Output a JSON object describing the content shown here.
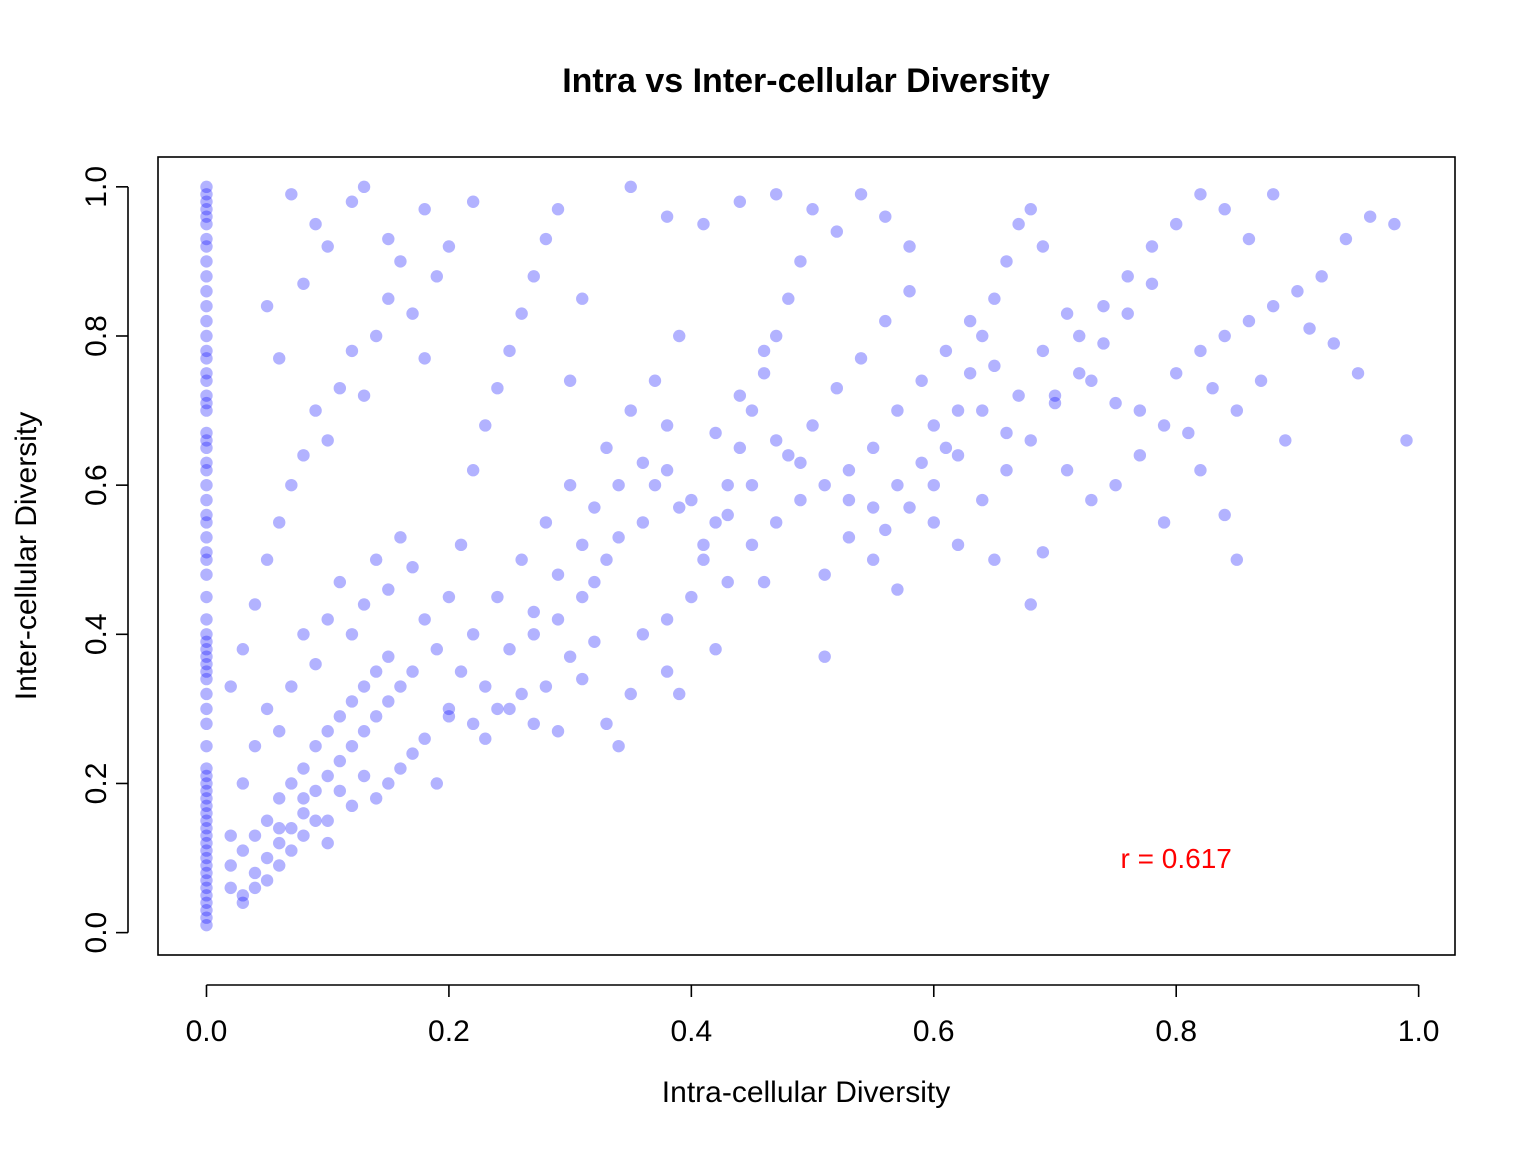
{
  "chart_data": {
    "type": "scatter",
    "title": "Intra vs Inter-cellular Diversity",
    "xlabel": "Intra-cellular Diversity",
    "ylabel": "Inter-cellular Diversity",
    "xlim": [
      -0.04,
      1.03
    ],
    "ylim": [
      -0.03,
      1.04
    ],
    "x_ticks": [
      0.0,
      0.2,
      0.4,
      0.6,
      0.8,
      1.0
    ],
    "x_tick_labels": [
      "0.0",
      "0.2",
      "0.4",
      "0.6",
      "0.8",
      "1.0"
    ],
    "y_ticks": [
      0.0,
      0.2,
      0.4,
      0.6,
      0.8,
      1.0
    ],
    "y_tick_labels": [
      "0.0",
      "0.2",
      "0.4",
      "0.6",
      "0.8",
      "1.0"
    ],
    "grid": false,
    "point_color": "#0000FF",
    "point_alpha": 0.3,
    "annotation": {
      "text": "r = 0.617",
      "x": 0.8,
      "y": 0.1,
      "color": "#FF0000"
    },
    "correlation": 0.617,
    "x_column_points_y": [
      0.01,
      0.02,
      0.03,
      0.04,
      0.05,
      0.06,
      0.07,
      0.08,
      0.09,
      0.1,
      0.11,
      0.12,
      0.13,
      0.14,
      0.15,
      0.16,
      0.17,
      0.18,
      0.19,
      0.2,
      0.21,
      0.22,
      0.25,
      0.28,
      0.3,
      0.32,
      0.34,
      0.35,
      0.36,
      0.37,
      0.38,
      0.39,
      0.4,
      0.42,
      0.45,
      0.48,
      0.5,
      0.51,
      0.53,
      0.55,
      0.56,
      0.58,
      0.6,
      0.62,
      0.63,
      0.65,
      0.66,
      0.67,
      0.7,
      0.71,
      0.72,
      0.74,
      0.75,
      0.77,
      0.78,
      0.8,
      0.82,
      0.84,
      0.86,
      0.88,
      0.9,
      0.92,
      0.93,
      0.95,
      0.96,
      0.97,
      0.98,
      0.99,
      1.0
    ],
    "points": [
      [
        0.02,
        0.06
      ],
      [
        0.03,
        0.05
      ],
      [
        0.02,
        0.09
      ],
      [
        0.04,
        0.08
      ],
      [
        0.03,
        0.11
      ],
      [
        0.05,
        0.1
      ],
      [
        0.04,
        0.13
      ],
      [
        0.06,
        0.12
      ],
      [
        0.05,
        0.15
      ],
      [
        0.07,
        0.14
      ],
      [
        0.06,
        0.18
      ],
      [
        0.08,
        0.16
      ],
      [
        0.07,
        0.2
      ],
      [
        0.09,
        0.19
      ],
      [
        0.08,
        0.22
      ],
      [
        0.1,
        0.21
      ],
      [
        0.09,
        0.25
      ],
      [
        0.11,
        0.23
      ],
      [
        0.1,
        0.27
      ],
      [
        0.12,
        0.25
      ],
      [
        0.11,
        0.29
      ],
      [
        0.13,
        0.27
      ],
      [
        0.12,
        0.31
      ],
      [
        0.14,
        0.29
      ],
      [
        0.13,
        0.33
      ],
      [
        0.15,
        0.31
      ],
      [
        0.14,
        0.35
      ],
      [
        0.16,
        0.33
      ],
      [
        0.15,
        0.37
      ],
      [
        0.17,
        0.35
      ],
      [
        0.02,
        0.13
      ],
      [
        0.03,
        0.2
      ],
      [
        0.04,
        0.25
      ],
      [
        0.05,
        0.3
      ],
      [
        0.06,
        0.27
      ],
      [
        0.07,
        0.33
      ],
      [
        0.08,
        0.4
      ],
      [
        0.09,
        0.36
      ],
      [
        0.1,
        0.42
      ],
      [
        0.11,
        0.47
      ],
      [
        0.12,
        0.4
      ],
      [
        0.13,
        0.44
      ],
      [
        0.14,
        0.5
      ],
      [
        0.15,
        0.46
      ],
      [
        0.16,
        0.53
      ],
      [
        0.17,
        0.49
      ],
      [
        0.18,
        0.42
      ],
      [
        0.19,
        0.38
      ],
      [
        0.2,
        0.45
      ],
      [
        0.21,
        0.52
      ],
      [
        0.02,
        0.33
      ],
      [
        0.03,
        0.38
      ],
      [
        0.04,
        0.44
      ],
      [
        0.05,
        0.5
      ],
      [
        0.06,
        0.55
      ],
      [
        0.07,
        0.6
      ],
      [
        0.08,
        0.64
      ],
      [
        0.09,
        0.7
      ],
      [
        0.1,
        0.66
      ],
      [
        0.11,
        0.73
      ],
      [
        0.12,
        0.78
      ],
      [
        0.13,
        0.72
      ],
      [
        0.14,
        0.8
      ],
      [
        0.15,
        0.85
      ],
      [
        0.16,
        0.9
      ],
      [
        0.17,
        0.83
      ],
      [
        0.18,
        0.77
      ],
      [
        0.19,
        0.88
      ],
      [
        0.2,
        0.92
      ],
      [
        0.22,
        0.98
      ],
      [
        0.07,
        0.99
      ],
      [
        0.09,
        0.95
      ],
      [
        0.12,
        0.98
      ],
      [
        0.13,
        1.0
      ],
      [
        0.05,
        0.84
      ],
      [
        0.06,
        0.77
      ],
      [
        0.08,
        0.87
      ],
      [
        0.1,
        0.92
      ],
      [
        0.15,
        0.93
      ],
      [
        0.18,
        0.97
      ],
      [
        0.2,
        0.3
      ],
      [
        0.21,
        0.35
      ],
      [
        0.22,
        0.4
      ],
      [
        0.23,
        0.33
      ],
      [
        0.24,
        0.45
      ],
      [
        0.25,
        0.38
      ],
      [
        0.26,
        0.5
      ],
      [
        0.27,
        0.43
      ],
      [
        0.28,
        0.55
      ],
      [
        0.29,
        0.48
      ],
      [
        0.3,
        0.6
      ],
      [
        0.31,
        0.52
      ],
      [
        0.32,
        0.57
      ],
      [
        0.33,
        0.65
      ],
      [
        0.34,
        0.6
      ],
      [
        0.35,
        0.7
      ],
      [
        0.36,
        0.63
      ],
      [
        0.37,
        0.74
      ],
      [
        0.38,
        0.68
      ],
      [
        0.39,
        0.8
      ],
      [
        0.22,
        0.62
      ],
      [
        0.23,
        0.68
      ],
      [
        0.24,
        0.73
      ],
      [
        0.25,
        0.78
      ],
      [
        0.26,
        0.83
      ],
      [
        0.27,
        0.88
      ],
      [
        0.28,
        0.93
      ],
      [
        0.29,
        0.97
      ],
      [
        0.3,
        0.74
      ],
      [
        0.31,
        0.85
      ],
      [
        0.23,
        0.26
      ],
      [
        0.25,
        0.3
      ],
      [
        0.27,
        0.28
      ],
      [
        0.29,
        0.27
      ],
      [
        0.34,
        0.25
      ],
      [
        0.35,
        0.32
      ],
      [
        0.38,
        0.35
      ],
      [
        0.39,
        0.32
      ],
      [
        0.42,
        0.38
      ],
      [
        0.31,
        0.34
      ],
      [
        0.4,
        0.45
      ],
      [
        0.41,
        0.5
      ],
      [
        0.42,
        0.55
      ],
      [
        0.43,
        0.6
      ],
      [
        0.44,
        0.65
      ],
      [
        0.45,
        0.7
      ],
      [
        0.46,
        0.75
      ],
      [
        0.47,
        0.8
      ],
      [
        0.48,
        0.85
      ],
      [
        0.49,
        0.9
      ],
      [
        0.4,
        0.58
      ],
      [
        0.42,
        0.67
      ],
      [
        0.44,
        0.72
      ],
      [
        0.46,
        0.78
      ],
      [
        0.48,
        0.64
      ],
      [
        0.5,
        0.68
      ],
      [
        0.52,
        0.73
      ],
      [
        0.54,
        0.77
      ],
      [
        0.56,
        0.82
      ],
      [
        0.58,
        0.86
      ],
      [
        0.43,
        0.47
      ],
      [
        0.45,
        0.52
      ],
      [
        0.47,
        0.55
      ],
      [
        0.49,
        0.58
      ],
      [
        0.51,
        0.48
      ],
      [
        0.53,
        0.53
      ],
      [
        0.55,
        0.5
      ],
      [
        0.57,
        0.46
      ],
      [
        0.51,
        0.37
      ],
      [
        0.46,
        0.47
      ],
      [
        0.6,
        0.6
      ],
      [
        0.61,
        0.65
      ],
      [
        0.62,
        0.7
      ],
      [
        0.63,
        0.75
      ],
      [
        0.64,
        0.8
      ],
      [
        0.65,
        0.85
      ],
      [
        0.66,
        0.9
      ],
      [
        0.67,
        0.95
      ],
      [
        0.68,
        0.97
      ],
      [
        0.69,
        0.92
      ],
      [
        0.6,
        0.55
      ],
      [
        0.62,
        0.52
      ],
      [
        0.64,
        0.58
      ],
      [
        0.66,
        0.62
      ],
      [
        0.68,
        0.66
      ],
      [
        0.7,
        0.71
      ],
      [
        0.72,
        0.75
      ],
      [
        0.74,
        0.79
      ],
      [
        0.76,
        0.83
      ],
      [
        0.78,
        0.87
      ],
      [
        0.65,
        0.5
      ],
      [
        0.68,
        0.44
      ],
      [
        0.69,
        0.51
      ],
      [
        0.71,
        0.62
      ],
      [
        0.73,
        0.58
      ],
      [
        0.75,
        0.6
      ],
      [
        0.77,
        0.64
      ],
      [
        0.79,
        0.55
      ],
      [
        0.82,
        0.62
      ],
      [
        0.85,
        0.5
      ],
      [
        0.7,
        0.72
      ],
      [
        0.72,
        0.8
      ],
      [
        0.74,
        0.84
      ],
      [
        0.76,
        0.88
      ],
      [
        0.78,
        0.92
      ],
      [
        0.8,
        0.95
      ],
      [
        0.82,
        0.99
      ],
      [
        0.84,
        0.97
      ],
      [
        0.86,
        0.93
      ],
      [
        0.88,
        0.99
      ],
      [
        0.8,
        0.75
      ],
      [
        0.82,
        0.78
      ],
      [
        0.84,
        0.8
      ],
      [
        0.86,
        0.82
      ],
      [
        0.88,
        0.84
      ],
      [
        0.9,
        0.86
      ],
      [
        0.92,
        0.88
      ],
      [
        0.94,
        0.93
      ],
      [
        0.96,
        0.96
      ],
      [
        0.98,
        0.95
      ],
      [
        0.85,
        0.7
      ],
      [
        0.87,
        0.74
      ],
      [
        0.89,
        0.66
      ],
      [
        0.91,
        0.81
      ],
      [
        0.93,
        0.79
      ],
      [
        0.95,
        0.75
      ],
      [
        0.99,
        0.66
      ],
      [
        0.84,
        0.56
      ],
      [
        0.81,
        0.67
      ],
      [
        0.83,
        0.73
      ],
      [
        0.52,
        0.94
      ],
      [
        0.54,
        0.99
      ],
      [
        0.56,
        0.96
      ],
      [
        0.58,
        0.92
      ],
      [
        0.5,
        0.97
      ],
      [
        0.47,
        0.99
      ],
      [
        0.44,
        0.98
      ],
      [
        0.41,
        0.95
      ],
      [
        0.38,
        0.96
      ],
      [
        0.35,
        1.0
      ],
      [
        0.33,
        0.28
      ],
      [
        0.36,
        0.4
      ],
      [
        0.38,
        0.42
      ],
      [
        0.32,
        0.39
      ],
      [
        0.3,
        0.37
      ],
      [
        0.28,
        0.33
      ],
      [
        0.26,
        0.32
      ],
      [
        0.24,
        0.3
      ],
      [
        0.22,
        0.28
      ],
      [
        0.2,
        0.29
      ],
      [
        0.14,
        0.18
      ],
      [
        0.15,
        0.2
      ],
      [
        0.16,
        0.22
      ],
      [
        0.17,
        0.24
      ],
      [
        0.18,
        0.26
      ],
      [
        0.19,
        0.2
      ],
      [
        0.12,
        0.17
      ],
      [
        0.11,
        0.19
      ],
      [
        0.1,
        0.15
      ],
      [
        0.13,
        0.21
      ],
      [
        0.05,
        0.07
      ],
      [
        0.06,
        0.09
      ],
      [
        0.07,
        0.11
      ],
      [
        0.08,
        0.13
      ],
      [
        0.09,
        0.15
      ],
      [
        0.1,
        0.12
      ],
      [
        0.03,
        0.04
      ],
      [
        0.04,
        0.06
      ],
      [
        0.06,
        0.14
      ],
      [
        0.08,
        0.18
      ],
      [
        0.55,
        0.65
      ],
      [
        0.57,
        0.7
      ],
      [
        0.59,
        0.74
      ],
      [
        0.53,
        0.62
      ],
      [
        0.51,
        0.6
      ],
      [
        0.49,
        0.63
      ],
      [
        0.47,
        0.66
      ],
      [
        0.45,
        0.6
      ],
      [
        0.43,
        0.56
      ],
      [
        0.41,
        0.52
      ],
      [
        0.61,
        0.78
      ],
      [
        0.63,
        0.82
      ],
      [
        0.65,
        0.76
      ],
      [
        0.67,
        0.72
      ],
      [
        0.69,
        0.78
      ],
      [
        0.71,
        0.83
      ],
      [
        0.73,
        0.74
      ],
      [
        0.75,
        0.71
      ],
      [
        0.77,
        0.7
      ],
      [
        0.79,
        0.68
      ],
      [
        0.36,
        0.55
      ],
      [
        0.37,
        0.6
      ],
      [
        0.38,
        0.62
      ],
      [
        0.39,
        0.57
      ],
      [
        0.34,
        0.53
      ],
      [
        0.33,
        0.5
      ],
      [
        0.32,
        0.47
      ],
      [
        0.31,
        0.45
      ],
      [
        0.29,
        0.42
      ],
      [
        0.27,
        0.4
      ],
      [
        0.57,
        0.6
      ],
      [
        0.59,
        0.63
      ],
      [
        0.6,
        0.68
      ],
      [
        0.58,
        0.57
      ],
      [
        0.56,
        0.54
      ],
      [
        0.62,
        0.64
      ],
      [
        0.64,
        0.7
      ],
      [
        0.66,
        0.67
      ],
      [
        0.55,
        0.57
      ],
      [
        0.53,
        0.58
      ]
    ]
  }
}
